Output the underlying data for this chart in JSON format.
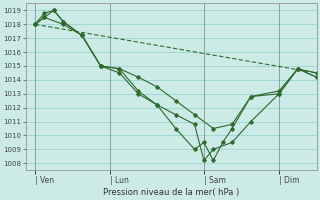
{
  "title": "Pression niveau de la mer( hPa )",
  "bg_color": "#cceae6",
  "grid_color": "#99d5cf",
  "line_color": "#2d6a2d",
  "ylim": [
    1007.5,
    1019.5
  ],
  "yticks": [
    1008,
    1009,
    1010,
    1011,
    1012,
    1013,
    1014,
    1015,
    1016,
    1017,
    1018,
    1019
  ],
  "xtick_labels": [
    "| Ven",
    "| Lun",
    "| Sam",
    "| Dim"
  ],
  "xtick_positions": [
    0,
    4,
    9,
    13
  ],
  "xlim": [
    -0.5,
    15.0
  ],
  "x_total": 15,
  "line_straight": {
    "x": [
      0,
      15
    ],
    "y": [
      1018.0,
      1014.5
    ]
  },
  "line_a": {
    "x": [
      0,
      0.5,
      1.5,
      2.5,
      3.5,
      4.5,
      5.5,
      6.5,
      7.5,
      8.5,
      9.5,
      10.5,
      11.5,
      13.0,
      14.0,
      15.0
    ],
    "y": [
      1018.0,
      1018.5,
      1018.0,
      1017.2,
      1015.0,
      1014.8,
      1014.2,
      1013.5,
      1012.5,
      1011.5,
      1010.5,
      1010.8,
      1012.8,
      1013.0,
      1014.8,
      1014.5
    ]
  },
  "line_b": {
    "x": [
      0,
      0.5,
      1.0,
      1.5,
      2.5,
      3.5,
      4.5,
      5.5,
      6.5,
      7.5,
      8.5,
      9.0,
      9.5,
      10.5,
      11.5,
      13.0,
      14.0,
      15.0
    ],
    "y": [
      1018.0,
      1018.8,
      1019.0,
      1018.2,
      1017.2,
      1015.0,
      1014.8,
      1013.2,
      1012.2,
      1011.5,
      1010.8,
      1008.2,
      1009.0,
      1009.5,
      1011.0,
      1013.0,
      1014.8,
      1014.2
    ]
  },
  "line_c": {
    "x": [
      0,
      0.5,
      1.0,
      1.5,
      2.5,
      3.5,
      4.5,
      5.5,
      6.5,
      7.5,
      8.5,
      9.0,
      9.5,
      10.0,
      10.5,
      11.5,
      13.0,
      14.0,
      15.0
    ],
    "y": [
      1018.0,
      1018.5,
      1019.0,
      1018.2,
      1017.2,
      1015.0,
      1014.5,
      1013.0,
      1012.2,
      1010.5,
      1009.0,
      1009.5,
      1008.2,
      1009.5,
      1010.5,
      1012.8,
      1013.2,
      1014.8,
      1014.2
    ]
  }
}
